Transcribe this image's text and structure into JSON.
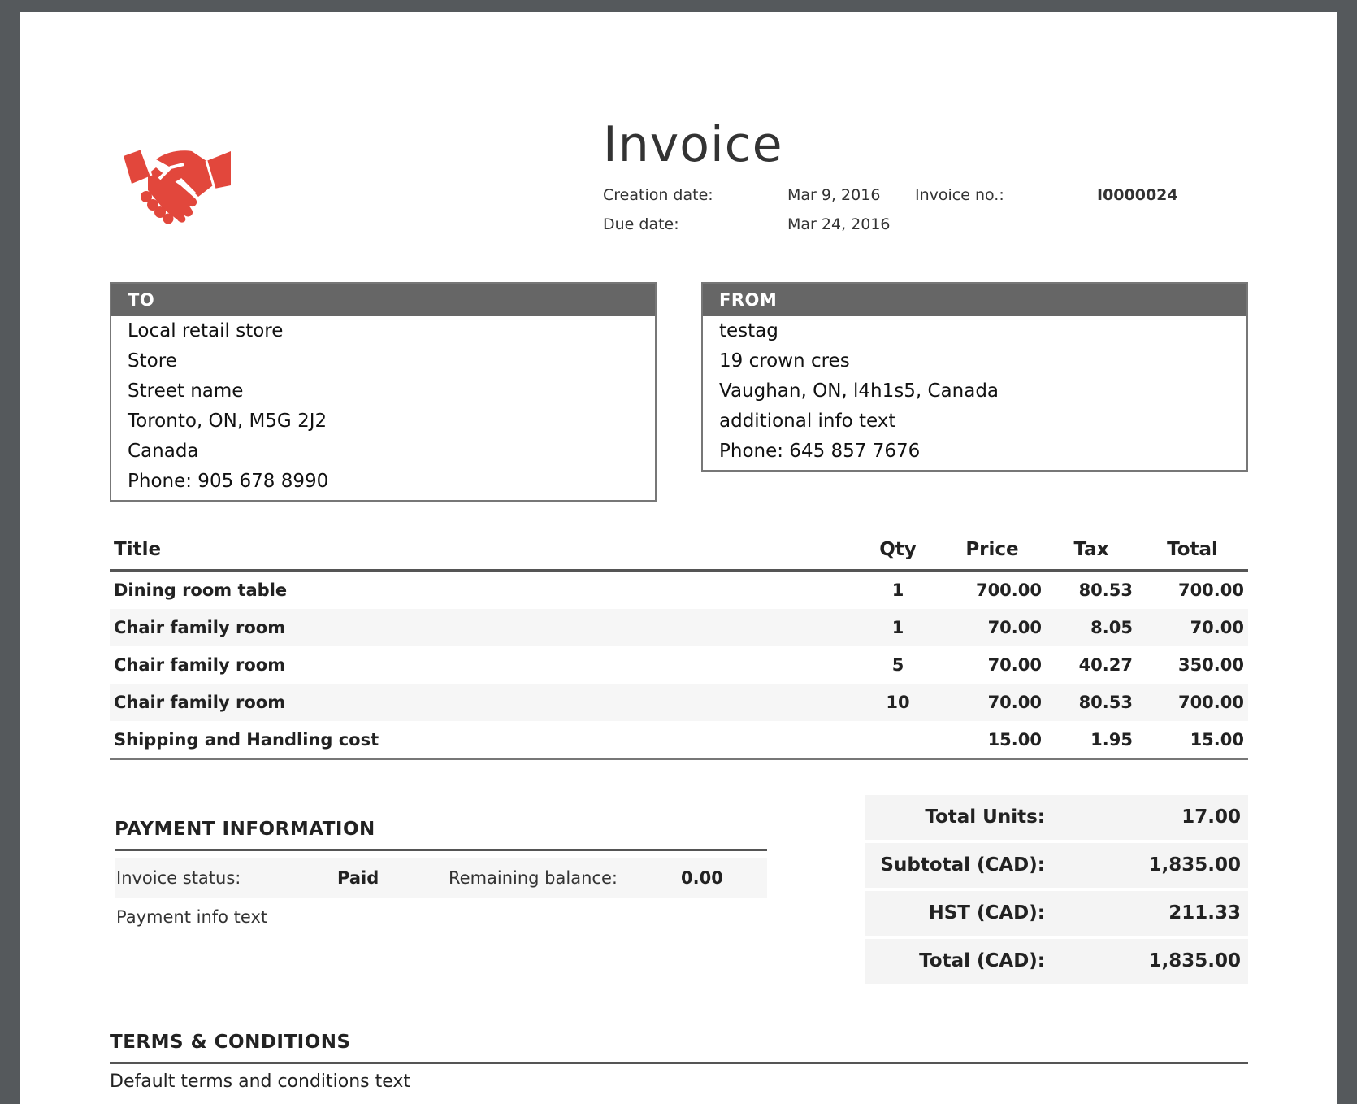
{
  "header": {
    "title": "Invoice",
    "creation_date_label": "Creation date:",
    "creation_date": "Mar 9, 2016",
    "due_date_label": "Due date:",
    "due_date": "Mar 24, 2016",
    "invoice_no_label": "Invoice no.:",
    "invoice_no": "I0000024",
    "logo_icon": "handshake-icon",
    "logo_color": "#e2473c"
  },
  "to": {
    "label": "TO",
    "lines": [
      "Local retail store",
      "Store",
      "Street name",
      "Toronto, ON, M5G 2J2",
      "Canada",
      "Phone: 905 678 8990"
    ]
  },
  "from": {
    "label": "FROM",
    "lines": [
      "testag",
      "19 crown cres",
      "Vaughan, ON, l4h1s5, Canada",
      "additional info text",
      "Phone: 645 857 7676"
    ]
  },
  "items": {
    "headers": {
      "title": "Title",
      "qty": "Qty",
      "price": "Price",
      "tax": "Tax",
      "total": "Total"
    },
    "rows": [
      {
        "title": "Dining room table",
        "qty": "1",
        "price": "700.00",
        "tax": "80.53",
        "total": "700.00"
      },
      {
        "title": "Chair family room",
        "qty": "1",
        "price": "70.00",
        "tax": "8.05",
        "total": "70.00"
      },
      {
        "title": "Chair family room",
        "qty": "5",
        "price": "70.00",
        "tax": "40.27",
        "total": "350.00"
      },
      {
        "title": "Chair family room",
        "qty": "10",
        "price": "70.00",
        "tax": "80.53",
        "total": "700.00"
      },
      {
        "title": "Shipping and Handling cost",
        "qty": "",
        "price": "15.00",
        "tax": "1.95",
        "total": "15.00"
      }
    ]
  },
  "payment": {
    "title": "PAYMENT INFORMATION",
    "status_label": "Invoice status:",
    "status": "Paid",
    "balance_label": "Remaining balance:",
    "balance": "0.00",
    "info": "Payment info text"
  },
  "summary": {
    "total_units_label": "Total Units:",
    "total_units": "17.00",
    "subtotal_label": "Subtotal (CAD):",
    "subtotal": "1,835.00",
    "hst_label": "HST (CAD):",
    "hst": "211.33",
    "total_label": "Total (CAD):",
    "total": "1,835.00"
  },
  "terms": {
    "title": "TERMS & CONDITIONS",
    "text": "Default terms and conditions text"
  }
}
